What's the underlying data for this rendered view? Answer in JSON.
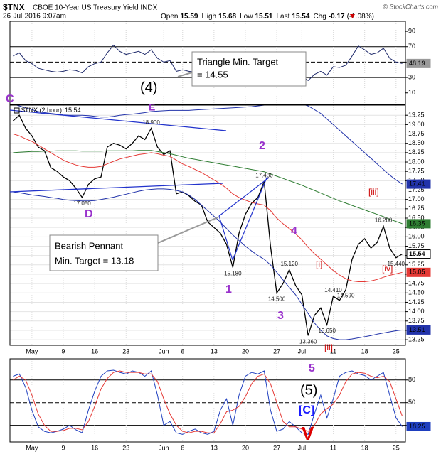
{
  "chart_data": [
    {
      "type": "line",
      "ylim": [
        -5,
        103
      ],
      "yticks": [
        90,
        70,
        50,
        30,
        10
      ],
      "reference_lines": [
        70,
        30
      ],
      "dashed_lines": [
        50
      ],
      "series": [
        {
          "color": "#1f2a6b",
          "last_value_box": true,
          "box_color": "#9a9a9a",
          "values": [
            58,
            62,
            52,
            48,
            42,
            40,
            38,
            37,
            38,
            40,
            39,
            36,
            44,
            48,
            50,
            62,
            72,
            64,
            60,
            62,
            64,
            60,
            66,
            55,
            50,
            52,
            38,
            40,
            38,
            37,
            35,
            32,
            31,
            30,
            28,
            25,
            38,
            45,
            48,
            52,
            58,
            35,
            28,
            32,
            38,
            34,
            32,
            26,
            34,
            38,
            33,
            44,
            43,
            46,
            58,
            71,
            66,
            60,
            62,
            68,
            55,
            50,
            48.19
          ]
        }
      ]
    },
    {
      "type": "line",
      "title": "$TNX",
      "subtitle": "CBOE 10-Year US Treasury Yield INDX",
      "timestamp": "26-Jul-2016 9:07am",
      "credit": "© StockCharts.com",
      "quote": [
        {
          "label": "Open",
          "value": 15.59
        },
        {
          "label": "High",
          "value": 15.68
        },
        {
          "label": "Low",
          "value": 15.51
        },
        {
          "label": "Last",
          "value": 15.54
        },
        {
          "label": "Chg",
          "value": -0.17
        }
      ],
      "change_pct": {
        "value": -1.08,
        "label": "(-1.08%)"
      },
      "grid": true,
      "ylim": [
        13.1,
        19.52
      ],
      "yticks": [
        13.25,
        {
          "value": 13.5,
          "label": "13.50"
        },
        13.75,
        {
          "value": 14,
          "label": "14.00"
        },
        14.25,
        {
          "value": 14.5,
          "label": "14.50"
        },
        14.75,
        {
          "value": 15,
          "label": "15.00"
        },
        15.25,
        {
          "value": 15.5,
          "label": "15.50"
        },
        15.75,
        {
          "value": 16,
          "label": "16.00"
        },
        16.25,
        {
          "value": 16.5,
          "label": "16.50"
        },
        16.75,
        {
          "value": 17,
          "label": "17.00"
        },
        17.25,
        {
          "value": 17.5,
          "label": "17.50"
        },
        17.75,
        {
          "value": 18,
          "label": "18.00"
        },
        18.25,
        {
          "value": 18.5,
          "label": "18.50"
        },
        18.75,
        {
          "value": 19,
          "label": "19.00"
        },
        19.25
      ],
      "categories": [
        null,
        null,
        null,
        "May",
        null,
        null,
        null,
        null,
        "9",
        null,
        null,
        null,
        null,
        "16",
        null,
        null,
        null,
        null,
        "23",
        null,
        null,
        null,
        null,
        null,
        "Jun",
        null,
        null,
        "6",
        null,
        null,
        null,
        null,
        "13",
        null,
        null,
        null,
        null,
        "20",
        null,
        null,
        null,
        null,
        "27",
        null,
        null,
        null,
        "Jul",
        null,
        null,
        null,
        null,
        "11",
        null,
        null,
        null,
        null,
        "18",
        null,
        null,
        null,
        null,
        "25",
        null
      ],
      "series": [
        {
          "name": "$TNX (2 hour)",
          "color": "#000000",
          "last_value_box": true,
          "box_color": "#ffffff",
          "values": [
            19.1,
            19.25,
            18.9,
            18.7,
            18.4,
            18.3,
            17.85,
            17.75,
            17.6,
            17.5,
            17.3,
            17.05,
            17.4,
            17.55,
            17.6,
            18.4,
            18.5,
            18.45,
            18.35,
            18.5,
            18.7,
            18.6,
            18.9,
            18.4,
            18.2,
            18.3,
            17.15,
            17.2,
            17.1,
            16.95,
            16.85,
            16.4,
            16.25,
            16.1,
            15.8,
            15.18,
            16.1,
            16.6,
            16.9,
            17.05,
            17.48,
            15.75,
            14.5,
            14.75,
            15.12,
            14.7,
            14.45,
            13.36,
            13.9,
            14.1,
            13.65,
            14.41,
            14.3,
            14.59,
            15.4,
            15.8,
            15.95,
            15.7,
            15.85,
            16.28,
            15.7,
            15.44,
            15.54
          ],
          "value_labels": [
            null,
            null,
            null,
            null,
            null,
            null,
            null,
            null,
            null,
            null,
            null,
            "17.050",
            null,
            null,
            null,
            null,
            null,
            null,
            null,
            null,
            null,
            null,
            "18.900",
            null,
            null,
            null,
            null,
            null,
            null,
            null,
            null,
            null,
            null,
            null,
            null,
            "15.180",
            null,
            null,
            null,
            null,
            "17.480",
            null,
            "14.500",
            null,
            "15.120",
            null,
            null,
            "13.360",
            null,
            null,
            "13.650",
            "14.410",
            null,
            "14.590",
            null,
            null,
            null,
            null,
            null,
            "16.280",
            null,
            "15.440",
            null
          ]
        },
        {
          "color": "#2e7d32",
          "last_value_box": true,
          "box_color": "#2e7d32",
          "values": [
            18.25,
            18.26,
            18.27,
            18.28,
            18.28,
            18.29,
            18.29,
            18.3,
            18.3,
            18.3,
            18.3,
            18.29,
            18.29,
            18.29,
            18.29,
            18.3,
            18.3,
            18.3,
            18.3,
            18.3,
            18.31,
            18.31,
            18.31,
            18.28,
            18.25,
            18.22,
            18.18,
            18.14,
            18.1,
            18.07,
            18.04,
            18.01,
            17.98,
            17.95,
            17.92,
            17.89,
            17.86,
            17.83,
            17.8,
            17.77,
            17.74,
            17.68,
            17.62,
            17.56,
            17.5,
            17.44,
            17.38,
            17.31,
            17.24,
            17.17,
            17.1,
            17.03,
            16.96,
            16.9,
            16.84,
            16.78,
            16.72,
            16.66,
            16.6,
            16.54,
            16.47,
            16.41,
            16.35
          ]
        },
        {
          "color": "#e53935",
          "last_value_box": true,
          "box_color": "#e53935",
          "values": [
            18.75,
            18.7,
            18.62,
            18.55,
            18.45,
            18.35,
            18.25,
            18.15,
            18.05,
            17.98,
            17.92,
            17.88,
            17.86,
            17.86,
            17.88,
            17.95,
            18.02,
            18.08,
            18.12,
            18.16,
            18.2,
            18.22,
            18.25,
            18.22,
            18.18,
            18.15,
            18.05,
            17.95,
            17.88,
            17.8,
            17.72,
            17.62,
            17.52,
            17.42,
            17.3,
            17.15,
            17.05,
            16.98,
            16.92,
            16.88,
            16.85,
            16.7,
            16.5,
            16.35,
            16.22,
            16.08,
            15.92,
            15.72,
            15.55,
            15.4,
            15.25,
            15.1,
            14.98,
            14.88,
            14.82,
            14.8,
            14.8,
            14.82,
            14.86,
            14.92,
            14.97,
            15.01,
            15.05
          ]
        },
        {
          "color": "#2233aa",
          "last_value_box": true,
          "box_color": "#2233aa",
          "values": [
            19.55,
            19.5,
            19.45,
            19.4,
            19.35,
            19.32,
            19.3,
            19.28,
            19.26,
            19.25,
            19.25,
            19.25,
            19.24,
            19.22,
            19.2,
            19.2,
            19.22,
            19.25,
            19.27,
            19.28,
            19.3,
            19.32,
            19.35,
            19.36,
            19.37,
            19.38,
            19.38,
            19.38,
            19.38,
            19.39,
            19.4,
            19.41,
            19.42,
            19.43,
            19.44,
            19.45,
            19.46,
            19.47,
            19.48,
            19.5,
            19.52,
            19.52,
            19.53,
            19.54,
            19.55,
            19.55,
            19.55,
            19.5,
            19.4,
            19.3,
            19.15,
            19.0,
            18.85,
            18.7,
            18.55,
            18.4,
            18.25,
            18.1,
            17.95,
            17.8,
            17.65,
            17.52,
            17.41
          ]
        },
        {
          "color": "#2233aa",
          "last_value_box": true,
          "box_color": "#2233aa",
          "values": [
            17.2,
            17.18,
            17.15,
            17.12,
            17.1,
            17.08,
            17.05,
            17.03,
            17.0,
            16.98,
            16.97,
            16.96,
            16.96,
            16.97,
            17.0,
            17.03,
            17.06,
            17.1,
            17.14,
            17.18,
            17.22,
            17.25,
            17.27,
            17.28,
            17.28,
            17.27,
            17.24,
            17.2,
            17.12,
            17.0,
            16.85,
            16.7,
            16.55,
            16.4,
            16.22,
            16.05,
            15.9,
            15.75,
            15.62,
            15.5,
            15.4,
            15.25,
            15.05,
            14.85,
            14.65,
            14.45,
            14.2,
            13.95,
            13.7,
            13.5,
            13.35,
            13.28,
            13.25,
            13.25,
            13.27,
            13.3,
            13.33,
            13.36,
            13.4,
            13.43,
            13.46,
            13.49,
            13.51
          ]
        }
      ],
      "annotations": [
        "C",
        "(4)",
        "E",
        "D",
        "2",
        "1",
        "3",
        "4",
        "[iii]",
        "[i]",
        "[iv]",
        "[ii]",
        "Triangle Min. Target",
        "= 14.55",
        "Bearish Pennant",
        "Min. Target = 13.18"
      ]
    },
    {
      "type": "line",
      "ylim": [
        -2,
        108
      ],
      "yticks": [
        80,
        50,
        20
      ],
      "reference_lines": [
        80,
        20
      ],
      "dashed_lines": [
        50
      ],
      "categories": [
        null,
        null,
        null,
        "May",
        null,
        null,
        null,
        null,
        "9",
        null,
        null,
        null,
        null,
        "16",
        null,
        null,
        null,
        null,
        "23",
        null,
        null,
        null,
        null,
        null,
        "Jun",
        null,
        null,
        "6",
        null,
        null,
        null,
        null,
        "13",
        null,
        null,
        null,
        null,
        "20",
        null,
        null,
        null,
        null,
        "27",
        null,
        null,
        null,
        "Jul",
        null,
        null,
        null,
        null,
        "11",
        null,
        null,
        null,
        null,
        "18",
        null,
        null,
        null,
        null,
        "25",
        null
      ],
      "series": [
        {
          "color": "#1f3fbf",
          "last_value_box": true,
          "box_color": "#1f3fbf",
          "values": [
            85,
            88,
            70,
            40,
            18,
            12,
            10,
            12,
            15,
            20,
            14,
            10,
            40,
            65,
            85,
            92,
            93,
            90,
            88,
            92,
            90,
            85,
            92,
            60,
            20,
            25,
            10,
            8,
            12,
            15,
            10,
            8,
            12,
            40,
            55,
            20,
            60,
            85,
            90,
            88,
            92,
            40,
            12,
            15,
            25,
            18,
            10,
            8,
            35,
            60,
            30,
            55,
            85,
            90,
            92,
            88,
            86,
            80,
            85,
            90,
            60,
            30,
            18.25
          ]
        },
        {
          "color": "#e53935",
          "last_value_box": false,
          "values": [
            80,
            85,
            80,
            60,
            35,
            20,
            12,
            12,
            13,
            16,
            16,
            14,
            25,
            45,
            68,
            82,
            90,
            92,
            90,
            90,
            90,
            88,
            88,
            78,
            55,
            35,
            20,
            12,
            10,
            12,
            12,
            10,
            10,
            22,
            38,
            40,
            45,
            58,
            75,
            85,
            88,
            75,
            50,
            25,
            18,
            18,
            15,
            12,
            20,
            35,
            42,
            48,
            60,
            78,
            88,
            90,
            89,
            85,
            83,
            85,
            78,
            55,
            32
          ]
        }
      ],
      "annotations": [
        "5",
        "(5)",
        "[C]",
        "V"
      ]
    }
  ]
}
